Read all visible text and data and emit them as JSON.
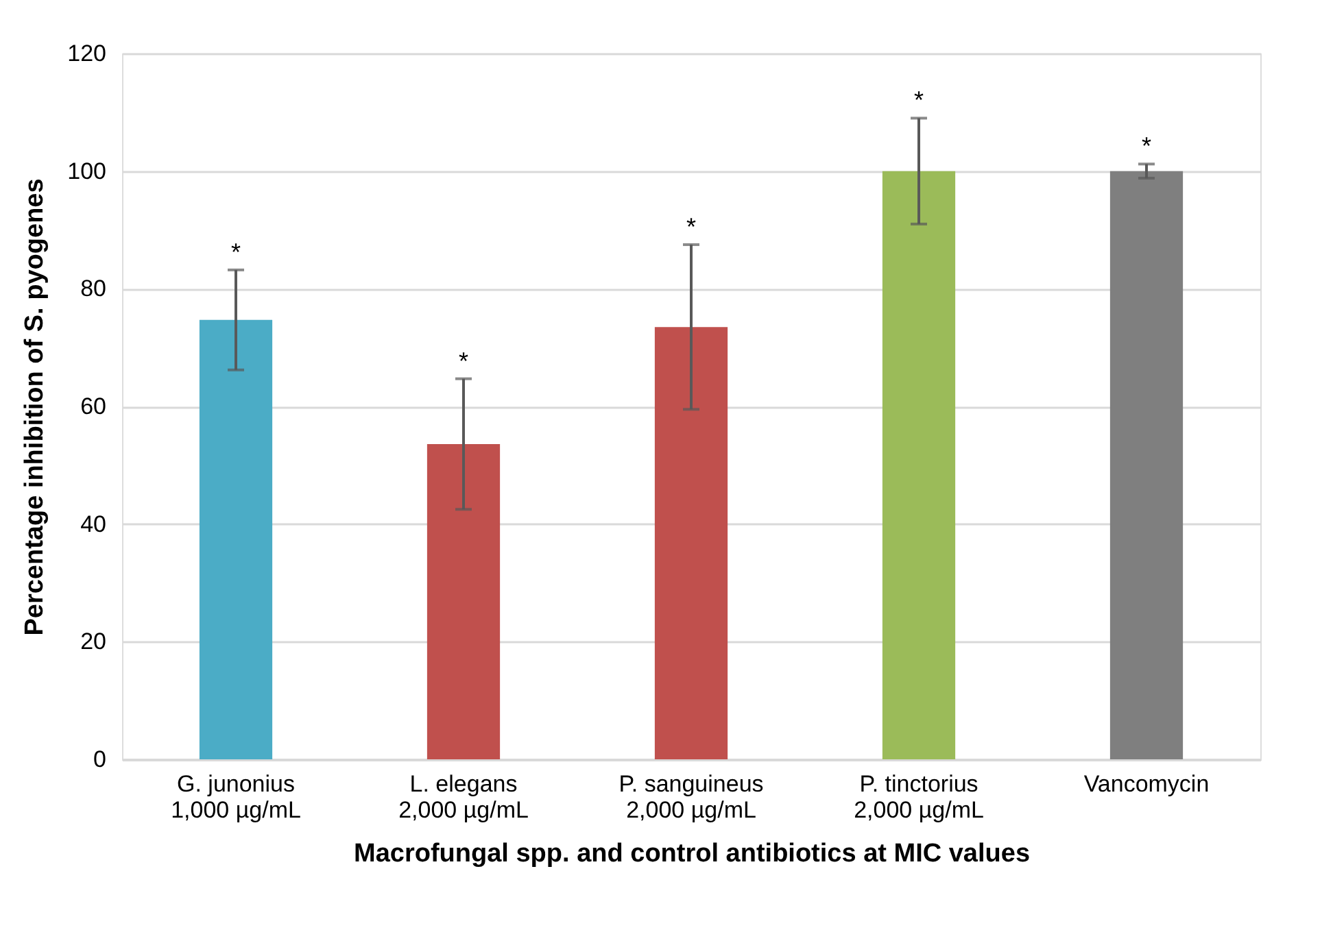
{
  "chart_data": {
    "type": "bar",
    "categories": [
      "G. junonius\n1,000 µg/mL",
      "L. elegans\n2,000 µg/mL",
      "P. sanguineus\n2,000 µg/mL",
      "P. tinctorius\n2,000 µg/mL",
      "Vancomycin"
    ],
    "values": [
      74.7,
      53.6,
      73.5,
      100,
      100
    ],
    "colors": [
      "#4bacc6",
      "#c0504d",
      "#c0504d",
      "#9bbb59",
      "#7f7f7f"
    ],
    "errors": [
      8.5,
      11.1,
      14,
      9,
      1.2
    ],
    "xlabel": "Macrofungal spp. and control antibiotics at MIC values",
    "ylabel": "Percentage inhibition of S. pyogenes",
    "ylim": [
      0,
      120
    ],
    "yticks": [
      0,
      20,
      40,
      60,
      80,
      100,
      120
    ],
    "grid": "y",
    "annotations": [
      "*",
      "*",
      "*",
      "*",
      "*"
    ]
  }
}
